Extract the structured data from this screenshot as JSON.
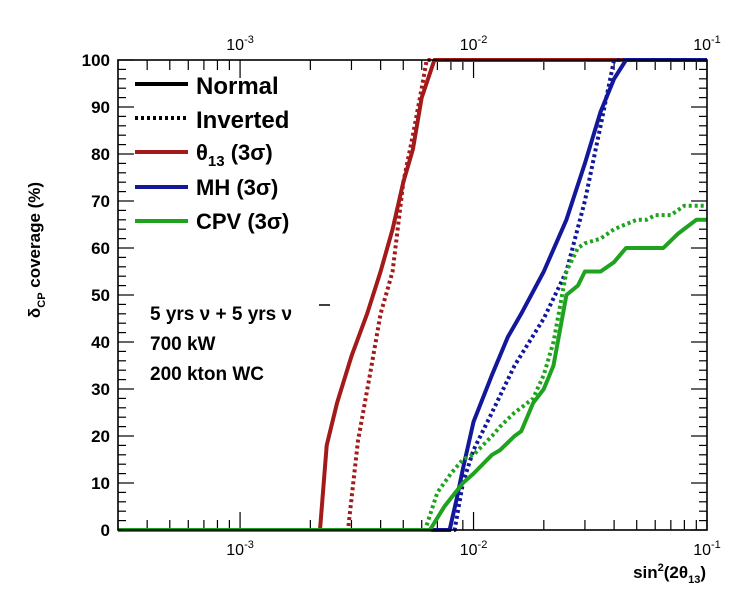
{
  "chart_data": {
    "type": "line",
    "xscale": "log",
    "xlim": [
      0.0003,
      0.1
    ],
    "ylim": [
      0,
      100
    ],
    "xlabel_main": "sin",
    "xlabel_sup": "2",
    "xlabel_rest": "(2θ",
    "xlabel_sub": "13",
    "xlabel_end": ")",
    "ylabel_delta": "δ",
    "ylabel_sub": "CP",
    "ylabel_rest": " coverage (%)",
    "x_ticks": [
      {
        "base": "10",
        "exp": "-3",
        "value": 0.001
      },
      {
        "base": "10",
        "exp": "-2",
        "value": 0.01
      },
      {
        "base": "10",
        "exp": "-1",
        "value": 0.1
      }
    ],
    "y_ticks": [
      "0",
      "10",
      "20",
      "30",
      "40",
      "50",
      "60",
      "70",
      "80",
      "90",
      "100"
    ],
    "legend": {
      "normal": "Normal",
      "inverted": "Inverted",
      "theta_main": "θ",
      "theta_sub": "13",
      "theta_rest": " (3σ)",
      "mh": "MH (3σ)",
      "cpv": "CPV (3σ)"
    },
    "annotation": {
      "line1_a": "5 yrs ν + 5 yrs ",
      "line1_b": "ν",
      "line2": "700 kW",
      "line3": "200 kton WC"
    },
    "colors": {
      "theta13": "#a31a1a",
      "mh": "#13179a",
      "cpv": "#1fa31f",
      "axis": "#000000"
    },
    "series": [
      {
        "name": "θ13 (3σ) Normal",
        "color": "#a31a1a",
        "dash": false,
        "points": [
          [
            0.0003,
            0
          ],
          [
            0.0022,
            0
          ],
          [
            0.00235,
            18
          ],
          [
            0.0026,
            27
          ],
          [
            0.003,
            37
          ],
          [
            0.0035,
            46
          ],
          [
            0.004,
            55
          ],
          [
            0.0045,
            64
          ],
          [
            0.005,
            74
          ],
          [
            0.0055,
            81
          ],
          [
            0.006,
            92
          ],
          [
            0.0068,
            100
          ],
          [
            0.1,
            100
          ]
        ]
      },
      {
        "name": "θ13 (3σ) Inverted",
        "color": "#a31a1a",
        "dash": true,
        "points": [
          [
            0.0003,
            0
          ],
          [
            0.0029,
            0
          ],
          [
            0.0032,
            19
          ],
          [
            0.0036,
            33
          ],
          [
            0.004,
            46
          ],
          [
            0.0045,
            55
          ],
          [
            0.005,
            74
          ],
          [
            0.0055,
            84
          ],
          [
            0.006,
            94
          ],
          [
            0.0063,
            100
          ],
          [
            0.1,
            100
          ]
        ]
      },
      {
        "name": "MH (3σ) Normal",
        "color": "#13179a",
        "dash": false,
        "points": [
          [
            0.0003,
            0
          ],
          [
            0.0079,
            0
          ],
          [
            0.0085,
            7
          ],
          [
            0.009,
            13
          ],
          [
            0.01,
            23
          ],
          [
            0.012,
            33
          ],
          [
            0.014,
            41
          ],
          [
            0.016,
            46
          ],
          [
            0.02,
            55
          ],
          [
            0.025,
            66
          ],
          [
            0.03,
            78
          ],
          [
            0.035,
            89
          ],
          [
            0.04,
            96
          ],
          [
            0.045,
            100
          ],
          [
            0.1,
            100
          ]
        ]
      },
      {
        "name": "MH (3σ) Inverted",
        "color": "#13179a",
        "dash": true,
        "points": [
          [
            0.0003,
            0
          ],
          [
            0.0083,
            0
          ],
          [
            0.009,
            10
          ],
          [
            0.01,
            17
          ],
          [
            0.012,
            25
          ],
          [
            0.015,
            35
          ],
          [
            0.02,
            45
          ],
          [
            0.025,
            55
          ],
          [
            0.03,
            70
          ],
          [
            0.035,
            86
          ],
          [
            0.04,
            100
          ],
          [
            0.1,
            100
          ]
        ]
      },
      {
        "name": "CPV (3σ) Normal",
        "color": "#1fa31f",
        "dash": false,
        "points": [
          [
            0.0003,
            0
          ],
          [
            0.0065,
            0
          ],
          [
            0.0075,
            5
          ],
          [
            0.009,
            10
          ],
          [
            0.01,
            12
          ],
          [
            0.012,
            16
          ],
          [
            0.013,
            17
          ],
          [
            0.015,
            20
          ],
          [
            0.016,
            21
          ],
          [
            0.018,
            27
          ],
          [
            0.02,
            30
          ],
          [
            0.022,
            35
          ],
          [
            0.025,
            50
          ],
          [
            0.028,
            52
          ],
          [
            0.03,
            55
          ],
          [
            0.035,
            55
          ],
          [
            0.04,
            57
          ],
          [
            0.045,
            60
          ],
          [
            0.06,
            60
          ],
          [
            0.065,
            60
          ],
          [
            0.075,
            63
          ],
          [
            0.09,
            66
          ],
          [
            0.1,
            66
          ]
        ]
      },
      {
        "name": "CPV (3σ) Inverted",
        "color": "#1fa31f",
        "dash": true,
        "points": [
          [
            0.0003,
            0
          ],
          [
            0.0062,
            0
          ],
          [
            0.007,
            8
          ],
          [
            0.008,
            12
          ],
          [
            0.009,
            15
          ],
          [
            0.01,
            16
          ],
          [
            0.012,
            20
          ],
          [
            0.013,
            22
          ],
          [
            0.015,
            25
          ],
          [
            0.016,
            26
          ],
          [
            0.018,
            28
          ],
          [
            0.02,
            33
          ],
          [
            0.022,
            40
          ],
          [
            0.025,
            55
          ],
          [
            0.028,
            60
          ],
          [
            0.03,
            61
          ],
          [
            0.035,
            62
          ],
          [
            0.04,
            64
          ],
          [
            0.05,
            66
          ],
          [
            0.055,
            66
          ],
          [
            0.06,
            67
          ],
          [
            0.07,
            67
          ],
          [
            0.08,
            69
          ],
          [
            0.1,
            69
          ]
        ]
      }
    ]
  }
}
